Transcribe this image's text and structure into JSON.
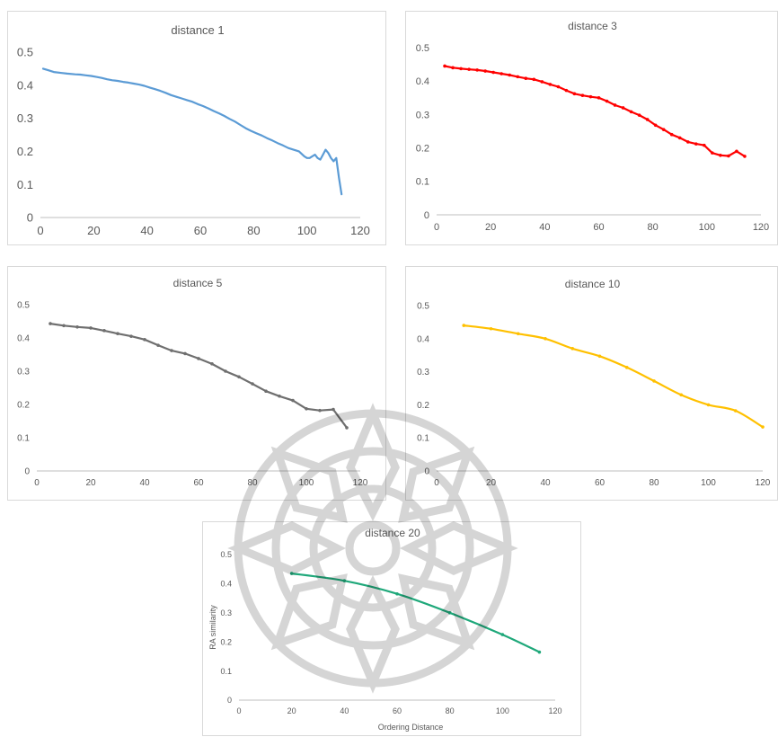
{
  "chart_data": [
    {
      "type": "line",
      "title": "distance 1",
      "color": "#5b9bd5",
      "markers": false,
      "xlim": [
        0,
        120
      ],
      "ylim": [
        0,
        0.5
      ],
      "xticks": [
        "0",
        "20",
        "40",
        "60",
        "80",
        "100",
        "120"
      ],
      "yticks": [
        "0",
        "0.1",
        "0.2",
        "0.3",
        "0.4",
        "0.5"
      ],
      "xlabel": "",
      "ylabel": "",
      "x": [
        1,
        3,
        5,
        8,
        10,
        13,
        15,
        17,
        19,
        21,
        23,
        25,
        27,
        29,
        31,
        33,
        35,
        37,
        39,
        41,
        43,
        45,
        47,
        49,
        51,
        53,
        55,
        57,
        59,
        61,
        63,
        65,
        67,
        69,
        71,
        73,
        75,
        77,
        79,
        81,
        83,
        85,
        87,
        89,
        91,
        93,
        95,
        97,
        99,
        100,
        101,
        102,
        103,
        104,
        105,
        106,
        107,
        108,
        109,
        110,
        111,
        112,
        113
      ],
      "y": [
        0.45,
        0.445,
        0.44,
        0.437,
        0.435,
        0.433,
        0.432,
        0.43,
        0.428,
        0.425,
        0.422,
        0.418,
        0.415,
        0.413,
        0.41,
        0.408,
        0.405,
        0.402,
        0.398,
        0.393,
        0.388,
        0.383,
        0.377,
        0.37,
        0.365,
        0.36,
        0.355,
        0.35,
        0.343,
        0.337,
        0.33,
        0.322,
        0.315,
        0.307,
        0.298,
        0.29,
        0.28,
        0.27,
        0.262,
        0.255,
        0.248,
        0.24,
        0.233,
        0.225,
        0.218,
        0.21,
        0.205,
        0.2,
        0.185,
        0.18,
        0.18,
        0.185,
        0.19,
        0.18,
        0.175,
        0.19,
        0.205,
        0.195,
        0.18,
        0.17,
        0.18,
        0.12,
        0.07
      ]
    },
    {
      "type": "line",
      "title": "distance 3",
      "color": "#ff0000",
      "markers": true,
      "xlim": [
        0,
        120
      ],
      "ylim": [
        0,
        0.5
      ],
      "xticks": [
        "0",
        "20",
        "40",
        "60",
        "80",
        "100",
        "120"
      ],
      "yticks": [
        "0",
        "0.1",
        "0.2",
        "0.3",
        "0.4",
        "0.5"
      ],
      "xlabel": "",
      "ylabel": "",
      "x": [
        3,
        6,
        9,
        12,
        15,
        18,
        21,
        24,
        27,
        30,
        33,
        36,
        39,
        42,
        45,
        48,
        51,
        54,
        57,
        60,
        63,
        66,
        69,
        72,
        75,
        78,
        81,
        84,
        87,
        90,
        93,
        96,
        99,
        102,
        105,
        108,
        111,
        114
      ],
      "y": [
        0.445,
        0.44,
        0.437,
        0.435,
        0.433,
        0.43,
        0.426,
        0.422,
        0.418,
        0.413,
        0.408,
        0.405,
        0.398,
        0.39,
        0.383,
        0.372,
        0.362,
        0.357,
        0.353,
        0.35,
        0.34,
        0.328,
        0.32,
        0.308,
        0.298,
        0.285,
        0.268,
        0.255,
        0.24,
        0.23,
        0.218,
        0.212,
        0.208,
        0.185,
        0.178,
        0.176,
        0.19,
        0.175
      ]
    },
    {
      "type": "line",
      "title": "distance 5",
      "color": "#6f6f6f",
      "markers": true,
      "xlim": [
        0,
        120
      ],
      "ylim": [
        0,
        0.5
      ],
      "xticks": [
        "0",
        "20",
        "40",
        "60",
        "80",
        "100",
        "120"
      ],
      "yticks": [
        "0",
        "0.1",
        "0.2",
        "0.3",
        "0.4",
        "0.5"
      ],
      "xlabel": "",
      "ylabel": "",
      "x": [
        5,
        10,
        15,
        20,
        25,
        30,
        35,
        40,
        45,
        50,
        55,
        60,
        65,
        70,
        75,
        80,
        85,
        90,
        95,
        100,
        105,
        110,
        115
      ],
      "y": [
        0.443,
        0.437,
        0.433,
        0.43,
        0.422,
        0.413,
        0.405,
        0.395,
        0.378,
        0.362,
        0.353,
        0.338,
        0.322,
        0.3,
        0.283,
        0.262,
        0.24,
        0.225,
        0.212,
        0.187,
        0.182,
        0.185,
        0.13
      ]
    },
    {
      "type": "line",
      "title": "distance 10",
      "color": "#ffc000",
      "markers": true,
      "xlim": [
        0,
        120
      ],
      "ylim": [
        0,
        0.5
      ],
      "xticks": [
        "0",
        "20",
        "40",
        "60",
        "80",
        "100",
        "120"
      ],
      "yticks": [
        "0",
        "0.1",
        "0.2",
        "0.3",
        "0.4",
        "0.5"
      ],
      "xlabel": "",
      "ylabel": "",
      "x": [
        10,
        20,
        30,
        40,
        50,
        60,
        70,
        80,
        90,
        100,
        110,
        120
      ],
      "y": [
        0.44,
        0.43,
        0.415,
        0.4,
        0.37,
        0.347,
        0.313,
        0.272,
        0.23,
        0.2,
        0.182,
        0.133
      ]
    },
    {
      "type": "line",
      "title": "distance 20",
      "color": "#1fa87a",
      "markers": true,
      "xlim": [
        0,
        120
      ],
      "ylim": [
        0,
        0.5
      ],
      "xticks": [
        "0",
        "20",
        "40",
        "60",
        "80",
        "100",
        "120"
      ],
      "yticks": [
        "0",
        "0.1",
        "0.2",
        "0.3",
        "0.4",
        "0.5"
      ],
      "xlabel": "Ordering Distance",
      "ylabel": "RA similarity",
      "x": [
        20,
        40,
        60,
        80,
        100,
        114
      ],
      "y": [
        0.435,
        0.41,
        0.365,
        0.3,
        0.225,
        0.165
      ]
    }
  ]
}
